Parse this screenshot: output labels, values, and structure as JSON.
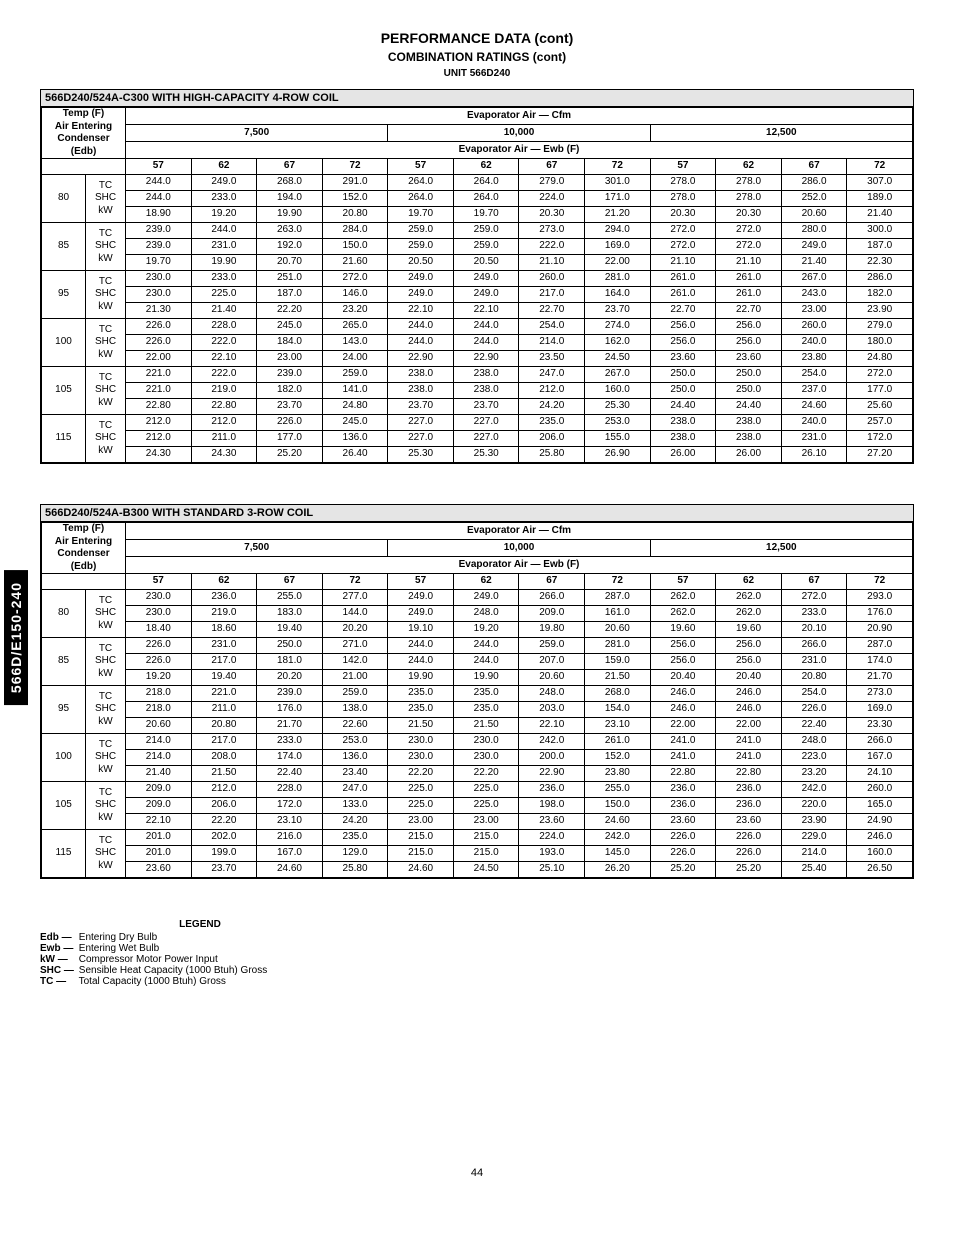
{
  "page": {
    "title": "PERFORMANCE DATA (cont)",
    "subtitle": "COMBINATION RATINGS (cont)",
    "unit": "UNIT 566D240",
    "side_tab": "566D/E150-240",
    "page_number": "44"
  },
  "headers": {
    "temp_block": "Temp (F)\nAir Entering\nCondenser\n(Edb)",
    "evap_cfm": "Evaporator Air — Cfm",
    "evap_ewb": "Evaporator Air — Ewb (F)",
    "cfm_groups": [
      "7,500",
      "10,000",
      "12,500"
    ],
    "ewb_cols": [
      "57",
      "62",
      "67",
      "72",
      "57",
      "62",
      "67",
      "72",
      "57",
      "62",
      "67",
      "72"
    ],
    "metrics": [
      "TC",
      "SHC",
      "kW"
    ]
  },
  "legend": {
    "title": "LEGEND",
    "rows": [
      {
        "k": "Edb",
        "v": "Entering Dry Bulb"
      },
      {
        "k": "Ewb",
        "v": "Entering Wet Bulb"
      },
      {
        "k": "kW",
        "v": "Compressor Motor Power Input"
      },
      {
        "k": "SHC",
        "v": "Sensible Heat Capacity (1000 Btuh) Gross"
      },
      {
        "k": "TC",
        "v": "Total Capacity (1000 Btuh) Gross"
      }
    ]
  },
  "tables": [
    {
      "title": "566D240/524A-C300 WITH HIGH-CAPACITY 4-ROW COIL",
      "rows": [
        {
          "t": "80",
          "d": [
            [
              "244.0",
              "249.0",
              "268.0",
              "291.0",
              "264.0",
              "264.0",
              "279.0",
              "301.0",
              "278.0",
              "278.0",
              "286.0",
              "307.0"
            ],
            [
              "244.0",
              "233.0",
              "194.0",
              "152.0",
              "264.0",
              "264.0",
              "224.0",
              "171.0",
              "278.0",
              "278.0",
              "252.0",
              "189.0"
            ],
            [
              "18.90",
              "19.20",
              "19.90",
              "20.80",
              "19.70",
              "19.70",
              "20.30",
              "21.20",
              "20.30",
              "20.30",
              "20.60",
              "21.40"
            ]
          ]
        },
        {
          "t": "85",
          "d": [
            [
              "239.0",
              "244.0",
              "263.0",
              "284.0",
              "259.0",
              "259.0",
              "273.0",
              "294.0",
              "272.0",
              "272.0",
              "280.0",
              "300.0"
            ],
            [
              "239.0",
              "231.0",
              "192.0",
              "150.0",
              "259.0",
              "259.0",
              "222.0",
              "169.0",
              "272.0",
              "272.0",
              "249.0",
              "187.0"
            ],
            [
              "19.70",
              "19.90",
              "20.70",
              "21.60",
              "20.50",
              "20.50",
              "21.10",
              "22.00",
              "21.10",
              "21.10",
              "21.40",
              "22.30"
            ]
          ]
        },
        {
          "t": "95",
          "d": [
            [
              "230.0",
              "233.0",
              "251.0",
              "272.0",
              "249.0",
              "249.0",
              "260.0",
              "281.0",
              "261.0",
              "261.0",
              "267.0",
              "286.0"
            ],
            [
              "230.0",
              "225.0",
              "187.0",
              "146.0",
              "249.0",
              "249.0",
              "217.0",
              "164.0",
              "261.0",
              "261.0",
              "243.0",
              "182.0"
            ],
            [
              "21.30",
              "21.40",
              "22.20",
              "23.20",
              "22.10",
              "22.10",
              "22.70",
              "23.70",
              "22.70",
              "22.70",
              "23.00",
              "23.90"
            ]
          ]
        },
        {
          "t": "100",
          "d": [
            [
              "226.0",
              "228.0",
              "245.0",
              "265.0",
              "244.0",
              "244.0",
              "254.0",
              "274.0",
              "256.0",
              "256.0",
              "260.0",
              "279.0"
            ],
            [
              "226.0",
              "222.0",
              "184.0",
              "143.0",
              "244.0",
              "244.0",
              "214.0",
              "162.0",
              "256.0",
              "256.0",
              "240.0",
              "180.0"
            ],
            [
              "22.00",
              "22.10",
              "23.00",
              "24.00",
              "22.90",
              "22.90",
              "23.50",
              "24.50",
              "23.60",
              "23.60",
              "23.80",
              "24.80"
            ]
          ]
        },
        {
          "t": "105",
          "d": [
            [
              "221.0",
              "222.0",
              "239.0",
              "259.0",
              "238.0",
              "238.0",
              "247.0",
              "267.0",
              "250.0",
              "250.0",
              "254.0",
              "272.0"
            ],
            [
              "221.0",
              "219.0",
              "182.0",
              "141.0",
              "238.0",
              "238.0",
              "212.0",
              "160.0",
              "250.0",
              "250.0",
              "237.0",
              "177.0"
            ],
            [
              "22.80",
              "22.80",
              "23.70",
              "24.80",
              "23.70",
              "23.70",
              "24.20",
              "25.30",
              "24.40",
              "24.40",
              "24.60",
              "25.60"
            ]
          ]
        },
        {
          "t": "115",
          "d": [
            [
              "212.0",
              "212.0",
              "226.0",
              "245.0",
              "227.0",
              "227.0",
              "235.0",
              "253.0",
              "238.0",
              "238.0",
              "240.0",
              "257.0"
            ],
            [
              "212.0",
              "211.0",
              "177.0",
              "136.0",
              "227.0",
              "227.0",
              "206.0",
              "155.0",
              "238.0",
              "238.0",
              "231.0",
              "172.0"
            ],
            [
              "24.30",
              "24.30",
              "25.20",
              "26.40",
              "25.30",
              "25.30",
              "25.80",
              "26.90",
              "26.00",
              "26.00",
              "26.10",
              "27.20"
            ]
          ]
        }
      ]
    },
    {
      "title": "566D240/524A-B300 WITH STANDARD 3-ROW COIL",
      "rows": [
        {
          "t": "80",
          "d": [
            [
              "230.0",
              "236.0",
              "255.0",
              "277.0",
              "249.0",
              "249.0",
              "266.0",
              "287.0",
              "262.0",
              "262.0",
              "272.0",
              "293.0"
            ],
            [
              "230.0",
              "219.0",
              "183.0",
              "144.0",
              "249.0",
              "248.0",
              "209.0",
              "161.0",
              "262.0",
              "262.0",
              "233.0",
              "176.0"
            ],
            [
              "18.40",
              "18.60",
              "19.40",
              "20.20",
              "19.10",
              "19.20",
              "19.80",
              "20.60",
              "19.60",
              "19.60",
              "20.10",
              "20.90"
            ]
          ]
        },
        {
          "t": "85",
          "d": [
            [
              "226.0",
              "231.0",
              "250.0",
              "271.0",
              "244.0",
              "244.0",
              "259.0",
              "281.0",
              "256.0",
              "256.0",
              "266.0",
              "287.0"
            ],
            [
              "226.0",
              "217.0",
              "181.0",
              "142.0",
              "244.0",
              "244.0",
              "207.0",
              "159.0",
              "256.0",
              "256.0",
              "231.0",
              "174.0"
            ],
            [
              "19.20",
              "19.40",
              "20.20",
              "21.00",
              "19.90",
              "19.90",
              "20.60",
              "21.50",
              "20.40",
              "20.40",
              "20.80",
              "21.70"
            ]
          ]
        },
        {
          "t": "95",
          "d": [
            [
              "218.0",
              "221.0",
              "239.0",
              "259.0",
              "235.0",
              "235.0",
              "248.0",
              "268.0",
              "246.0",
              "246.0",
              "254.0",
              "273.0"
            ],
            [
              "218.0",
              "211.0",
              "176.0",
              "138.0",
              "235.0",
              "235.0",
              "203.0",
              "154.0",
              "246.0",
              "246.0",
              "226.0",
              "169.0"
            ],
            [
              "20.60",
              "20.80",
              "21.70",
              "22.60",
              "21.50",
              "21.50",
              "22.10",
              "23.10",
              "22.00",
              "22.00",
              "22.40",
              "23.30"
            ]
          ]
        },
        {
          "t": "100",
          "d": [
            [
              "214.0",
              "217.0",
              "233.0",
              "253.0",
              "230.0",
              "230.0",
              "242.0",
              "261.0",
              "241.0",
              "241.0",
              "248.0",
              "266.0"
            ],
            [
              "214.0",
              "208.0",
              "174.0",
              "136.0",
              "230.0",
              "230.0",
              "200.0",
              "152.0",
              "241.0",
              "241.0",
              "223.0",
              "167.0"
            ],
            [
              "21.40",
              "21.50",
              "22.40",
              "23.40",
              "22.20",
              "22.20",
              "22.90",
              "23.80",
              "22.80",
              "22.80",
              "23.20",
              "24.10"
            ]
          ]
        },
        {
          "t": "105",
          "d": [
            [
              "209.0",
              "212.0",
              "228.0",
              "247.0",
              "225.0",
              "225.0",
              "236.0",
              "255.0",
              "236.0",
              "236.0",
              "242.0",
              "260.0"
            ],
            [
              "209.0",
              "206.0",
              "172.0",
              "133.0",
              "225.0",
              "225.0",
              "198.0",
              "150.0",
              "236.0",
              "236.0",
              "220.0",
              "165.0"
            ],
            [
              "22.10",
              "22.20",
              "23.10",
              "24.20",
              "23.00",
              "23.00",
              "23.60",
              "24.60",
              "23.60",
              "23.60",
              "23.90",
              "24.90"
            ]
          ]
        },
        {
          "t": "115",
          "d": [
            [
              "201.0",
              "202.0",
              "216.0",
              "235.0",
              "215.0",
              "215.0",
              "224.0",
              "242.0",
              "226.0",
              "226.0",
              "229.0",
              "246.0"
            ],
            [
              "201.0",
              "199.0",
              "167.0",
              "129.0",
              "215.0",
              "215.0",
              "193.0",
              "145.0",
              "226.0",
              "226.0",
              "214.0",
              "160.0"
            ],
            [
              "23.60",
              "23.70",
              "24.60",
              "25.80",
              "24.60",
              "24.50",
              "25.10",
              "26.20",
              "25.20",
              "25.20",
              "25.40",
              "26.50"
            ]
          ]
        }
      ]
    }
  ]
}
